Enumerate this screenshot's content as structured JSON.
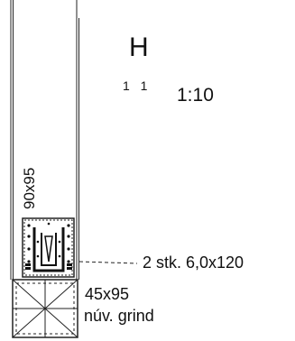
{
  "drawing": {
    "title": "H",
    "section_number": "1 1",
    "scale": "1:10",
    "post_dimension": "90x95",
    "fastener_note": "2 stk. 6,0x120",
    "lower_member_dimension": "45x95",
    "lower_member_description": "núv. grind"
  },
  "colors": {
    "line": "#222222",
    "background": "#ffffff"
  }
}
